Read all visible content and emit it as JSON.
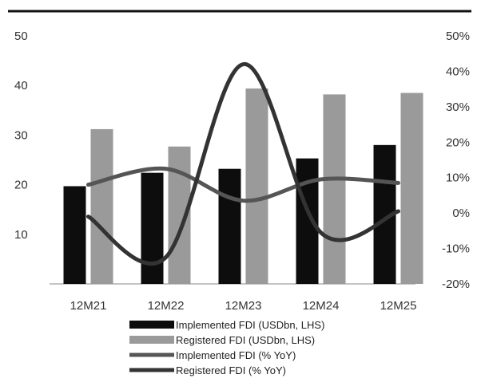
{
  "chart_data": {
    "type": "bar",
    "categories": [
      "12M21",
      "12M22",
      "12M23",
      "12M24",
      "12M25"
    ],
    "series": [
      {
        "name": "Implemented FDI (USDbn, LHS)",
        "kind": "bar",
        "axis": "left",
        "color": "#0d0d0d",
        "values": [
          19.7,
          22.4,
          23.2,
          25.3,
          28.0
        ]
      },
      {
        "name": "Registered FDI (USDbn, LHS)",
        "kind": "bar",
        "axis": "left",
        "color": "#9a9a9a",
        "values": [
          31.2,
          27.7,
          39.4,
          38.2,
          38.5
        ]
      },
      {
        "name": "Implemented FDI (% YoY)",
        "kind": "line",
        "axis": "right",
        "color": "#555555",
        "values": [
          8.0,
          12.5,
          3.5,
          9.5,
          8.5
        ]
      },
      {
        "name": "Registered FDI (% YoY)",
        "kind": "line",
        "axis": "right",
        "color": "#333333",
        "values": [
          -1.0,
          -12.5,
          42.0,
          -5.5,
          0.5
        ]
      }
    ],
    "left_axis": {
      "ticks": [
        "10",
        "20",
        "30",
        "40",
        "50"
      ],
      "tick_values": [
        10,
        20,
        30,
        40,
        50
      ],
      "ylim": [
        0,
        50
      ]
    },
    "right_axis": {
      "ticks": [
        "-20%",
        "-10%",
        "0%",
        "10%",
        "20%",
        "30%",
        "40%",
        "50%"
      ],
      "tick_values": [
        -20,
        -10,
        0,
        10,
        20,
        30,
        40,
        50
      ],
      "ylim": [
        -20,
        50
      ]
    },
    "legend_position": "bottom",
    "grid": false
  }
}
